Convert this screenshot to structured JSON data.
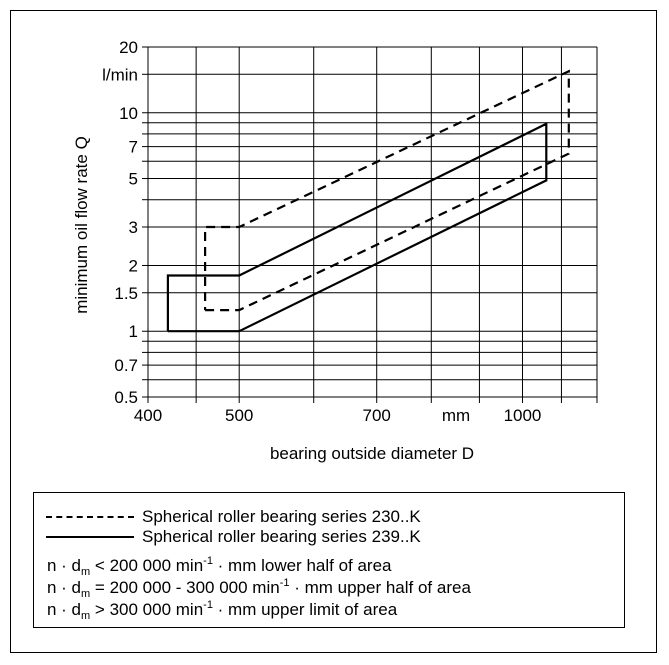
{
  "chart_data": {
    "type": "area",
    "xlabel": "bearing outside diameter D",
    "ylabel": "minimum oil flow rate Q",
    "x_unit": "mm",
    "y_unit": "l/min",
    "x_scale": "log",
    "y_scale": "log",
    "xlim": [
      400,
      1200
    ],
    "ylim": [
      0.5,
      20
    ],
    "x_ticks": [
      {
        "v": 400,
        "label": "400"
      },
      {
        "v": 500,
        "label": "500"
      },
      {
        "v": 700,
        "label": "700"
      },
      {
        "v": 850,
        "label": "mm"
      },
      {
        "v": 1000,
        "label": "1000"
      }
    ],
    "x_grid": [
      400,
      450,
      500,
      600,
      700,
      800,
      900,
      1000,
      1100,
      1200
    ],
    "y_ticks": [
      {
        "v": 0.5,
        "label": "0.5"
      },
      {
        "v": 0.7,
        "label": "0.7"
      },
      {
        "v": 1,
        "label": "1"
      },
      {
        "v": 1.5,
        "label": "1.5"
      },
      {
        "v": 2,
        "label": "2"
      },
      {
        "v": 3,
        "label": "3"
      },
      {
        "v": 5,
        "label": "5"
      },
      {
        "v": 7,
        "label": "7"
      },
      {
        "v": 10,
        "label": "10"
      },
      {
        "v": 15,
        "label": "l/min"
      },
      {
        "v": 20,
        "label": "20"
      }
    ],
    "y_grid": [
      0.5,
      0.6,
      0.7,
      0.8,
      0.9,
      1,
      1.5,
      2,
      3,
      4,
      5,
      6,
      7,
      8,
      9,
      10,
      15,
      20
    ],
    "grid": true,
    "series": [
      {
        "name": "Spherical roller bearing series 230..K",
        "style": "dashed",
        "x": [
          460,
          500,
          1120,
          1120,
          500,
          460,
          460
        ],
        "y": [
          1.25,
          1.25,
          6.5,
          15.5,
          3.0,
          3.0,
          1.25
        ]
      },
      {
        "name": "Spherical roller bearing series 239..K",
        "style": "solid",
        "x": [
          420,
          500,
          1060,
          1060,
          500,
          420,
          420
        ],
        "y": [
          1.0,
          1.0,
          4.9,
          8.9,
          1.8,
          1.8,
          1.0
        ]
      }
    ]
  },
  "legend": {
    "entries": [
      {
        "label": "Spherical roller bearing series 230..K"
      },
      {
        "label": "Spherical roller bearing series 239..K"
      }
    ],
    "notes": [
      {
        "pre": "n · d",
        "sub": "m",
        "mid": " < 200 000 min",
        "sup": "-1",
        "post": " · mm lower half of area"
      },
      {
        "pre": "n · d",
        "sub": "m",
        "mid": " = 200 000 - 300 000 min",
        "sup": "-1",
        "post": " · mm upper half of area"
      },
      {
        "pre": "n · d",
        "sub": "m",
        "mid": " > 300 000 min",
        "sup": "-1",
        "post": " · mm upper limit of area"
      }
    ]
  }
}
